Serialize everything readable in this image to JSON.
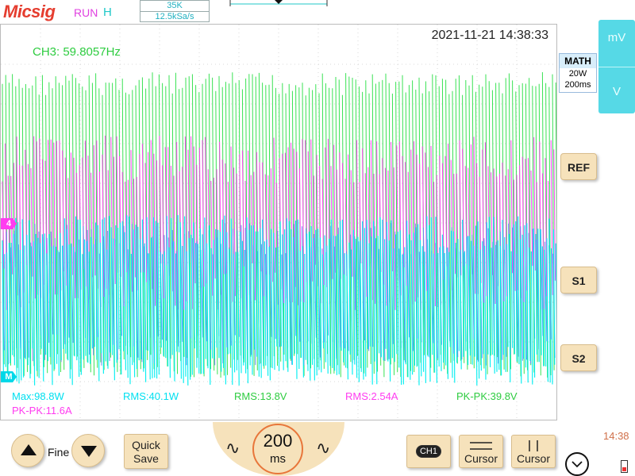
{
  "header": {
    "brand": "Micsig",
    "run_status": "RUN",
    "trigger_mode": "H",
    "memory_depth": "35K",
    "sample_rate": "12.5kSa/s"
  },
  "screen": {
    "timestamp": "2021-11-21 14:38:33",
    "frequency_readout": "CH3: 59.8057Hz",
    "ch4_marker": "4",
    "math_marker": "M",
    "measurements": {
      "math_max": "Max:98.8W",
      "math_rms": "RMS:40.1W",
      "ch3_rms": "RMS:13.8V",
      "ch4_rms": "RMS:2.54A",
      "ch3_pkpk": "PK-PK:39.8V",
      "ch4_pkpk": "PK-PK:11.6A"
    }
  },
  "right_panel": {
    "math_title": "MATH",
    "math_scale": "20W",
    "math_timebase": "200ms",
    "unit_up": "mV",
    "unit_down": "V",
    "ref_label": "REF",
    "s1_label": "S1",
    "s2_label": "S2"
  },
  "bottom_bar": {
    "fine_label": "Fine",
    "quick_save_line1": "Quick",
    "quick_save_line2": "Save",
    "timebase_value": "200",
    "timebase_unit": "ms",
    "channel_label": "CH1",
    "cursor1_label": "Cursor",
    "cursor2_label": "Cursor",
    "clock": "14:38"
  },
  "colors": {
    "ch3": "#2ee04a",
    "ch4": "#ff3cf0",
    "math": "#00eef0",
    "ch_blue": "#6688ee",
    "brand": "#e53d2f",
    "button_bg": "#f6e2bb",
    "timebase_ring": "#e8763a"
  },
  "icons": {
    "up": "up-triangle-icon",
    "down": "down-triangle-icon",
    "wave_left": "sine-wave-icon",
    "wave_right": "sine-wave-icon",
    "menu": "chevron-down-icon",
    "battery": "battery-low-icon",
    "trigger": "trigger-position-icon"
  }
}
